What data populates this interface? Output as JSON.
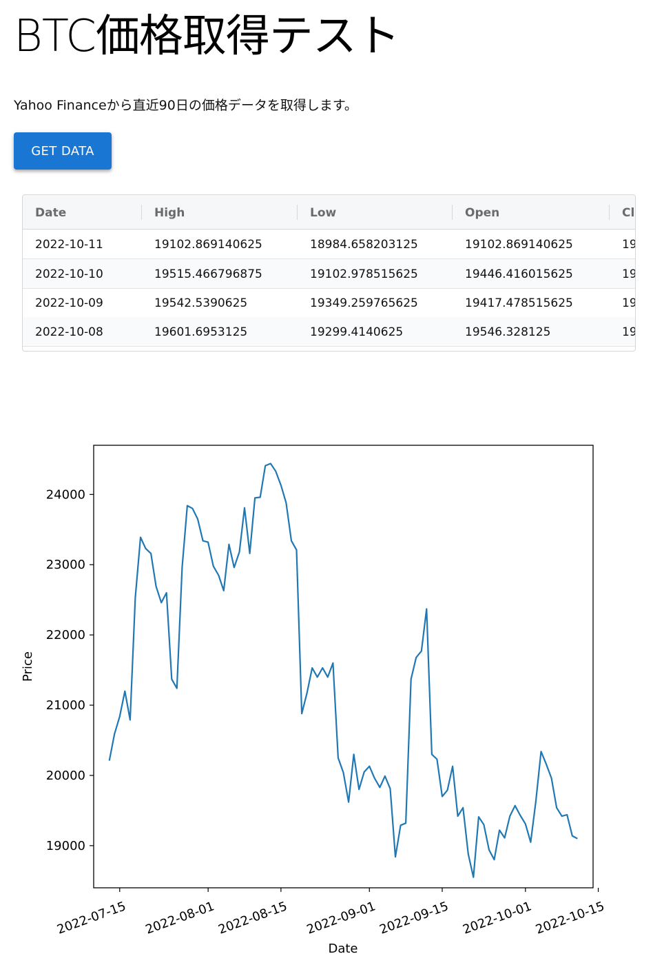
{
  "page": {
    "title": "BTC価格取得テスト",
    "subtitle": "Yahoo Financeから直近90日の価格データを取得します。",
    "button_label": "GET DATA"
  },
  "table": {
    "columns": [
      "Date",
      "High",
      "Low",
      "Open",
      "Cl"
    ],
    "rows": [
      [
        "2022-10-11",
        "19102.869140625",
        "18984.658203125",
        "19102.869140625",
        "19"
      ],
      [
        "2022-10-10",
        "19515.466796875",
        "19102.978515625",
        "19446.416015625",
        "19"
      ],
      [
        "2022-10-09",
        "19542.5390625",
        "19349.259765625",
        "19417.478515625",
        "19"
      ],
      [
        "2022-10-08",
        "19601.6953125",
        "19299.4140625",
        "19546.328125",
        "19"
      ]
    ]
  },
  "chart_data": {
    "type": "line",
    "xlabel": "Date",
    "ylabel": "Price",
    "ylim": [
      18400,
      24700
    ],
    "yticks": [
      19000,
      20000,
      21000,
      22000,
      23000,
      24000
    ],
    "xticks": [
      "2022-07-15",
      "2022-08-01",
      "2022-08-15",
      "2022-09-01",
      "2022-09-15",
      "2022-10-01",
      "2022-10-15"
    ],
    "xlim": [
      "2022-07-10",
      "2022-10-14"
    ],
    "line_color": "#1f77b4",
    "grid": false,
    "x": [
      "2022-07-13",
      "2022-07-14",
      "2022-07-15",
      "2022-07-16",
      "2022-07-17",
      "2022-07-18",
      "2022-07-19",
      "2022-07-20",
      "2022-07-21",
      "2022-07-22",
      "2022-07-23",
      "2022-07-24",
      "2022-07-25",
      "2022-07-26",
      "2022-07-27",
      "2022-07-28",
      "2022-07-29",
      "2022-07-30",
      "2022-07-31",
      "2022-08-01",
      "2022-08-02",
      "2022-08-03",
      "2022-08-04",
      "2022-08-05",
      "2022-08-06",
      "2022-08-07",
      "2022-08-08",
      "2022-08-09",
      "2022-08-10",
      "2022-08-11",
      "2022-08-12",
      "2022-08-13",
      "2022-08-14",
      "2022-08-15",
      "2022-08-16",
      "2022-08-17",
      "2022-08-18",
      "2022-08-19",
      "2022-08-20",
      "2022-08-21",
      "2022-08-22",
      "2022-08-23",
      "2022-08-24",
      "2022-08-25",
      "2022-08-26",
      "2022-08-27",
      "2022-08-28",
      "2022-08-29",
      "2022-08-30",
      "2022-08-31",
      "2022-09-01",
      "2022-09-02",
      "2022-09-03",
      "2022-09-04",
      "2022-09-05",
      "2022-09-06",
      "2022-09-07",
      "2022-09-08",
      "2022-09-09",
      "2022-09-10",
      "2022-09-11",
      "2022-09-12",
      "2022-09-13",
      "2022-09-14",
      "2022-09-15",
      "2022-09-16",
      "2022-09-17",
      "2022-09-18",
      "2022-09-19",
      "2022-09-20",
      "2022-09-21",
      "2022-09-22",
      "2022-09-23",
      "2022-09-24",
      "2022-09-25",
      "2022-09-26",
      "2022-09-27",
      "2022-09-28",
      "2022-09-29",
      "2022-09-30",
      "2022-10-01",
      "2022-10-02",
      "2022-10-03",
      "2022-10-04",
      "2022-10-05",
      "2022-10-06",
      "2022-10-07",
      "2022-10-08",
      "2022-10-09",
      "2022-10-10",
      "2022-10-11"
    ],
    "y": [
      20210,
      20590,
      20840,
      21200,
      20790,
      22530,
      23390,
      23230,
      23160,
      22690,
      22460,
      22600,
      21370,
      21240,
      22960,
      23840,
      23800,
      23650,
      23340,
      23320,
      22980,
      22850,
      22630,
      23290,
      22960,
      23180,
      23810,
      23160,
      23950,
      23960,
      24410,
      24440,
      24330,
      24130,
      23880,
      23340,
      23210,
      20880,
      21170,
      21530,
      21400,
      21530,
      21400,
      21600,
      20250,
      20040,
      19620,
      20300,
      19800,
      20050,
      20130,
      19960,
      19830,
      19990,
      19810,
      18840,
      19290,
      19320,
      21370,
      21680,
      21770,
      22370,
      20300,
      20230,
      19700,
      19790,
      20130,
      19420,
      19540,
      18880,
      18550,
      19410,
      19300,
      18940,
      18800,
      19220,
      19110,
      19420,
      19570,
      19430,
      19310,
      19050,
      19630,
      20340,
      20160,
      19960,
      19540,
      19420,
      19440,
      19140,
      19100
    ]
  }
}
